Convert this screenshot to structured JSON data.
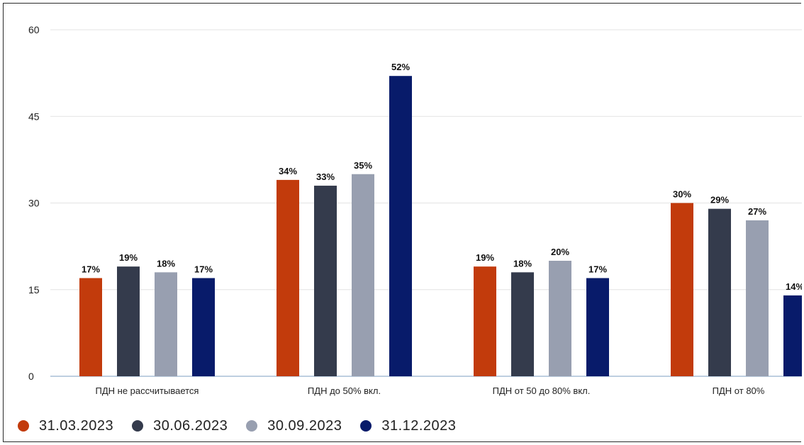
{
  "chart_data": {
    "type": "bar",
    "categories": [
      "ПДН не рассчитывается",
      "ПДН до 50% вкл.",
      "ПДН от 50 до 80% вкл.",
      "ПДН от 80%"
    ],
    "series": [
      {
        "name": "31.03.2023",
        "color": "#c23b0c",
        "values": [
          17,
          34,
          19,
          30
        ],
        "labels": [
          "17%",
          "34%",
          "19%",
          "30%"
        ]
      },
      {
        "name": "30.06.2023",
        "color": "#343b4c",
        "values": [
          19,
          33,
          18,
          29
        ],
        "labels": [
          "19%",
          "33%",
          "18%",
          "29%"
        ]
      },
      {
        "name": "30.09.2023",
        "color": "#989fb0",
        "values": [
          18,
          35,
          20,
          27
        ],
        "labels": [
          "18%",
          "35%",
          "20%",
          "27%"
        ]
      },
      {
        "name": "31.12.2023",
        "color": "#081b6a",
        "values": [
          17,
          52,
          17,
          14
        ],
        "labels": [
          "17%",
          "52%",
          "17%",
          "14%"
        ]
      }
    ],
    "yticks": [
      0,
      15,
      30,
      45,
      60
    ],
    "ylim": [
      0,
      60
    ],
    "grid": true,
    "legend": "bottom-left"
  }
}
